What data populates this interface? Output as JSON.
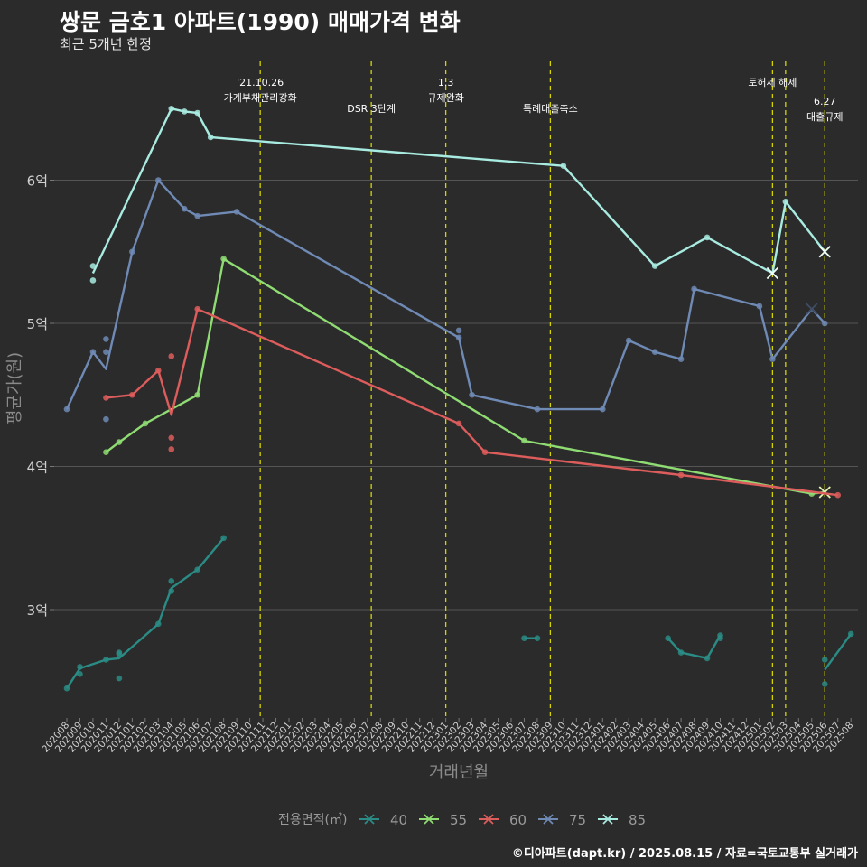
{
  "title": "쌍문 금호1 아파트(1990) 매매가격 변화",
  "subtitle": "최근 5개년 한정",
  "caption": "©디아파트(dapt.kr) / 2025.08.15 / 자료=국토교통부 실거래가",
  "chart_data": {
    "type": "line",
    "xlabel": "거래년월",
    "ylabel": "평균가(원)",
    "ylim": [
      2.3,
      6.8
    ],
    "xlim": [
      "202008",
      "202508"
    ],
    "yticks": [
      {
        "value": 3,
        "label": "3억"
      },
      {
        "value": 4,
        "label": "4억"
      },
      {
        "value": 5,
        "label": "5억"
      },
      {
        "value": 6,
        "label": "6억"
      }
    ],
    "categories": [
      "202008",
      "202009",
      "202010",
      "202011",
      "202012",
      "202101",
      "202102",
      "202103",
      "202104",
      "202105",
      "202106",
      "202107",
      "202108",
      "202109",
      "202110",
      "202111",
      "202112",
      "202201",
      "202202",
      "202203",
      "202204",
      "202205",
      "202206",
      "202207",
      "202208",
      "202209",
      "202210",
      "202211",
      "202212",
      "202301",
      "202302",
      "202303",
      "202304",
      "202305",
      "202306",
      "202307",
      "202308",
      "202309",
      "202310",
      "202311",
      "202312",
      "202401",
      "202402",
      "202403",
      "202404",
      "202405",
      "202406",
      "202407",
      "202408",
      "202409",
      "202410",
      "202411",
      "202412",
      "202501",
      "202502",
      "202503",
      "202504",
      "202505",
      "202506",
      "202507",
      "202508"
    ],
    "grid": true,
    "legend": {
      "title": "전용면적(㎡)",
      "position": "bottom"
    },
    "events": [
      {
        "x": "202110.8",
        "lines": [
          "'21.10.26",
          "가계부채관리강화"
        ],
        "label_row": 0
      },
      {
        "x": "202207.3",
        "lines": [
          "DSR 3단계"
        ],
        "label_row": 1
      },
      {
        "x": "202301.0",
        "lines": [
          "1.3",
          "규제완화"
        ],
        "label_row": 0
      },
      {
        "x": "202309.0",
        "lines": [
          "특례대출축소"
        ],
        "label_row": 1
      },
      {
        "x": "202502.0",
        "lines": [
          "토허제 해제"
        ],
        "label_row": 0
      },
      {
        "x": "202503.0",
        "lines": [],
        "label_row": 0
      },
      {
        "x": "202506.0",
        "lines": [
          "6.27",
          "대출규제"
        ],
        "label_row": 2
      }
    ],
    "series": [
      {
        "name": "40",
        "color": "#2a8c85",
        "line": [
          [
            "202008",
            2.45
          ],
          [
            "202009",
            2.59
          ],
          [
            "202011",
            2.65
          ],
          [
            "202012",
            2.66
          ],
          [
            "202103",
            2.9
          ],
          [
            "202104",
            3.15
          ],
          [
            "202106",
            3.28
          ],
          [
            "202108",
            3.5
          ]
        ],
        "line2": [
          [
            "202307",
            2.8
          ],
          [
            "202308",
            2.8
          ]
        ],
        "line3": [
          [
            "202406",
            2.8
          ],
          [
            "202407",
            2.7
          ],
          [
            "202409",
            2.66
          ],
          [
            "202410",
            2.82
          ]
        ],
        "line4": [
          [
            "202506",
            2.58
          ],
          [
            "202508",
            2.83
          ]
        ],
        "points": [
          [
            "202008",
            2.45
          ],
          [
            "202009",
            2.55
          ],
          [
            "202009",
            2.6
          ],
          [
            "202011",
            2.65
          ],
          [
            "202012",
            2.7
          ],
          [
            "202012",
            2.69
          ],
          [
            "202012",
            2.52
          ],
          [
            "202103",
            2.9
          ],
          [
            "202104",
            3.2
          ],
          [
            "202104",
            3.13
          ],
          [
            "202106",
            3.28
          ],
          [
            "202108",
            3.5
          ],
          [
            "202307",
            2.8
          ],
          [
            "202308",
            2.8
          ],
          [
            "202406",
            2.8
          ],
          [
            "202407",
            2.7
          ],
          [
            "202409",
            2.66
          ],
          [
            "202410",
            2.82
          ],
          [
            "202410",
            2.8
          ],
          [
            "202506",
            2.65
          ],
          [
            "202506",
            2.48
          ],
          [
            "202508",
            2.83
          ]
        ]
      },
      {
        "name": "55",
        "color": "#8fdc73",
        "line": [
          [
            "202011",
            4.1
          ],
          [
            "202012",
            4.17
          ],
          [
            "202102",
            4.3
          ],
          [
            "202104",
            4.4
          ],
          [
            "202106",
            4.5
          ],
          [
            "202108",
            5.45
          ],
          [
            "202307",
            4.18
          ],
          [
            "202505",
            3.81
          ],
          [
            "202506",
            3.82
          ]
        ],
        "points": [
          [
            "202011",
            4.1
          ],
          [
            "202012",
            4.17
          ],
          [
            "202102",
            4.3
          ],
          [
            "202106",
            4.5
          ],
          [
            "202108",
            5.45
          ],
          [
            "202307",
            4.18
          ],
          [
            "202505",
            3.81
          ]
        ],
        "last": [
          "202506",
          3.82
        ]
      },
      {
        "name": "60",
        "color": "#dd5c5c",
        "line": [
          [
            "202011",
            4.48
          ],
          [
            "202101",
            4.5
          ],
          [
            "202103",
            4.67
          ],
          [
            "202104",
            4.36
          ],
          [
            "202106",
            5.1
          ],
          [
            "202302",
            4.3
          ],
          [
            "202304",
            4.1
          ],
          [
            "202407",
            3.94
          ],
          [
            "202507",
            3.8
          ]
        ],
        "points": [
          [
            "202011",
            4.48
          ],
          [
            "202101",
            4.5
          ],
          [
            "202103",
            4.67
          ],
          [
            "202104",
            4.77
          ],
          [
            "202104",
            4.2
          ],
          [
            "202104",
            4.12
          ],
          [
            "202106",
            5.1
          ],
          [
            "202302",
            4.3
          ],
          [
            "202304",
            4.1
          ],
          [
            "202407",
            3.94
          ],
          [
            "202507",
            3.8
          ]
        ]
      },
      {
        "name": "75",
        "color": "#6f8ab5",
        "line": [
          [
            "202008",
            4.4
          ],
          [
            "202010",
            4.8
          ],
          [
            "202011",
            4.68
          ],
          [
            "202101",
            5.5
          ],
          [
            "202103",
            6.0
          ],
          [
            "202105",
            5.8
          ],
          [
            "202106",
            5.75
          ],
          [
            "202109",
            5.78
          ],
          [
            "202302",
            4.9
          ],
          [
            "202303",
            4.5
          ],
          [
            "202308",
            4.4
          ],
          [
            "202401",
            4.4
          ],
          [
            "202403",
            4.88
          ],
          [
            "202405",
            4.8
          ],
          [
            "202407",
            4.75
          ],
          [
            "202408",
            5.24
          ],
          [
            "202501",
            5.12
          ],
          [
            "202502",
            4.75
          ],
          [
            "202505",
            5.1
          ],
          [
            "202506",
            5.0
          ]
        ],
        "points": [
          [
            "202008",
            4.4
          ],
          [
            "202010",
            4.8
          ],
          [
            "202011",
            4.89
          ],
          [
            "202011",
            4.8
          ],
          [
            "202011",
            4.33
          ],
          [
            "202101",
            5.5
          ],
          [
            "202103",
            6.0
          ],
          [
            "202105",
            5.8
          ],
          [
            "202106",
            5.75
          ],
          [
            "202109",
            5.78
          ],
          [
            "202302",
            4.95
          ],
          [
            "202302",
            4.9
          ],
          [
            "202303",
            4.5
          ],
          [
            "202308",
            4.4
          ],
          [
            "202401",
            4.4
          ],
          [
            "202403",
            4.88
          ],
          [
            "202405",
            4.8
          ],
          [
            "202407",
            4.75
          ],
          [
            "202408",
            5.24
          ],
          [
            "202501",
            5.12
          ],
          [
            "202502",
            4.75
          ],
          [
            "202506",
            5.0
          ]
        ],
        "last": [
          "202505",
          5.1
        ]
      },
      {
        "name": "85",
        "color": "#a8ebe0",
        "line": [
          [
            "202010",
            5.35
          ],
          [
            "202104",
            6.5
          ],
          [
            "202105",
            6.48
          ],
          [
            "202106",
            6.47
          ],
          [
            "202107",
            6.3
          ],
          [
            "202310",
            6.1
          ],
          [
            "202405",
            5.4
          ],
          [
            "202409",
            5.6
          ],
          [
            "202502",
            5.35
          ],
          [
            "202503",
            5.85
          ],
          [
            "202506",
            5.5
          ]
        ],
        "points": [
          [
            "202010",
            5.4
          ],
          [
            "202010",
            5.3
          ],
          [
            "202104",
            6.5
          ],
          [
            "202105",
            6.48
          ],
          [
            "202106",
            6.47
          ],
          [
            "202107",
            6.3
          ],
          [
            "202310",
            6.1
          ],
          [
            "202405",
            5.4
          ],
          [
            "202409",
            5.6
          ],
          [
            "202503",
            5.85
          ]
        ],
        "last_multi": [
          [
            "202502",
            5.35
          ],
          [
            "202506",
            5.5
          ]
        ]
      }
    ]
  }
}
